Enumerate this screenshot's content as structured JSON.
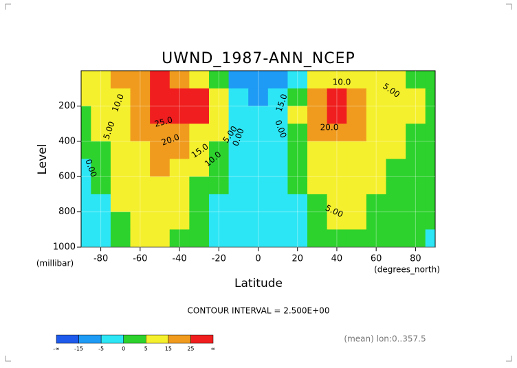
{
  "chart_data": {
    "type": "contour",
    "title": "UWND_1987-ANN_NCEP",
    "x_label": "Latitude",
    "x_unit": "(degrees_north)",
    "y_label": "Level",
    "y_unit": "(millibar)",
    "footnote": "CONTOUR INTERVAL = 2.500E+00",
    "info": "(mean) lon:0..357.5",
    "x": [
      -90,
      -80,
      -70,
      -60,
      -50,
      -40,
      -30,
      -20,
      -10,
      0,
      10,
      20,
      30,
      40,
      50,
      60,
      70,
      80,
      90
    ],
    "y": [
      50,
      150,
      250,
      350,
      450,
      550,
      650,
      750,
      850,
      950
    ],
    "z": [
      [
        8,
        10,
        15,
        22,
        26,
        20,
        12,
        3,
        -8,
        -12,
        -10,
        -2,
        8,
        12,
        10,
        8,
        5,
        4,
        3
      ],
      [
        6,
        8,
        14,
        22,
        28,
        28,
        26,
        10,
        -2,
        -6,
        -4,
        3,
        20,
        26,
        20,
        12,
        8,
        5,
        4
      ],
      [
        4,
        6,
        12,
        20,
        28,
        27,
        27,
        12,
        -1,
        -4,
        -2,
        5,
        22,
        26,
        18,
        12,
        8,
        5,
        3
      ],
      [
        3,
        5,
        10,
        17,
        24,
        20,
        14,
        6,
        -2,
        -3,
        -2,
        4,
        16,
        20,
        15,
        10,
        6,
        4,
        2
      ],
      [
        1,
        3,
        8,
        14,
        19,
        16,
        8,
        2,
        -2,
        -3,
        -2,
        2,
        11,
        14,
        12,
        8,
        5,
        3,
        2
      ],
      [
        -1,
        1,
        7,
        12,
        16,
        13,
        5,
        1,
        -2,
        -5,
        -2,
        1,
        8,
        11,
        10,
        7,
        4,
        2,
        1
      ],
      [
        -2,
        0,
        6,
        11,
        14,
        10,
        4,
        0,
        -2,
        -3,
        -2,
        0,
        6,
        9,
        8,
        5,
        3,
        1,
        1
      ],
      [
        -2,
        -1,
        5,
        10,
        12,
        8,
        3,
        -1,
        -3,
        -3,
        -2,
        -1,
        4,
        7,
        6,
        4,
        2,
        1,
        1
      ],
      [
        -2,
        -2,
        3,
        8,
        10,
        6,
        2,
        -2,
        -4,
        -3,
        -2,
        -1,
        1,
        5,
        5,
        3,
        1,
        1,
        0
      ],
      [
        -2,
        -2,
        1,
        6,
        8,
        4,
        0,
        -3,
        -5,
        -4,
        -2,
        -1,
        0,
        3,
        3,
        2,
        1,
        0,
        -1
      ]
    ],
    "xlim": [
      -90,
      90
    ],
    "ylim": [
      1000,
      0
    ],
    "xticks": [
      -80,
      -60,
      -40,
      -20,
      0,
      20,
      40,
      60,
      80
    ],
    "yticks": [
      200,
      400,
      600,
      800,
      1000
    ],
    "levels": [
      -15,
      -5,
      0,
      5,
      15,
      25
    ],
    "colors": [
      "#1e5aeb",
      "#1e9bf5",
      "#2de6f5",
      "#2dd22d",
      "#f5f02d",
      "#f09b1e",
      "#f01e1e"
    ],
    "colorbar_ends": [
      "-∞",
      "∞"
    ],
    "contour_labels": [
      "10.0",
      "5.00",
      "0.00",
      "25.0",
      "20.0",
      "15.0",
      "10.0",
      "5.00",
      "0.00",
      "0.00",
      "10.0",
      "5.00",
      "15.0",
      "20.0",
      "5.00"
    ]
  }
}
